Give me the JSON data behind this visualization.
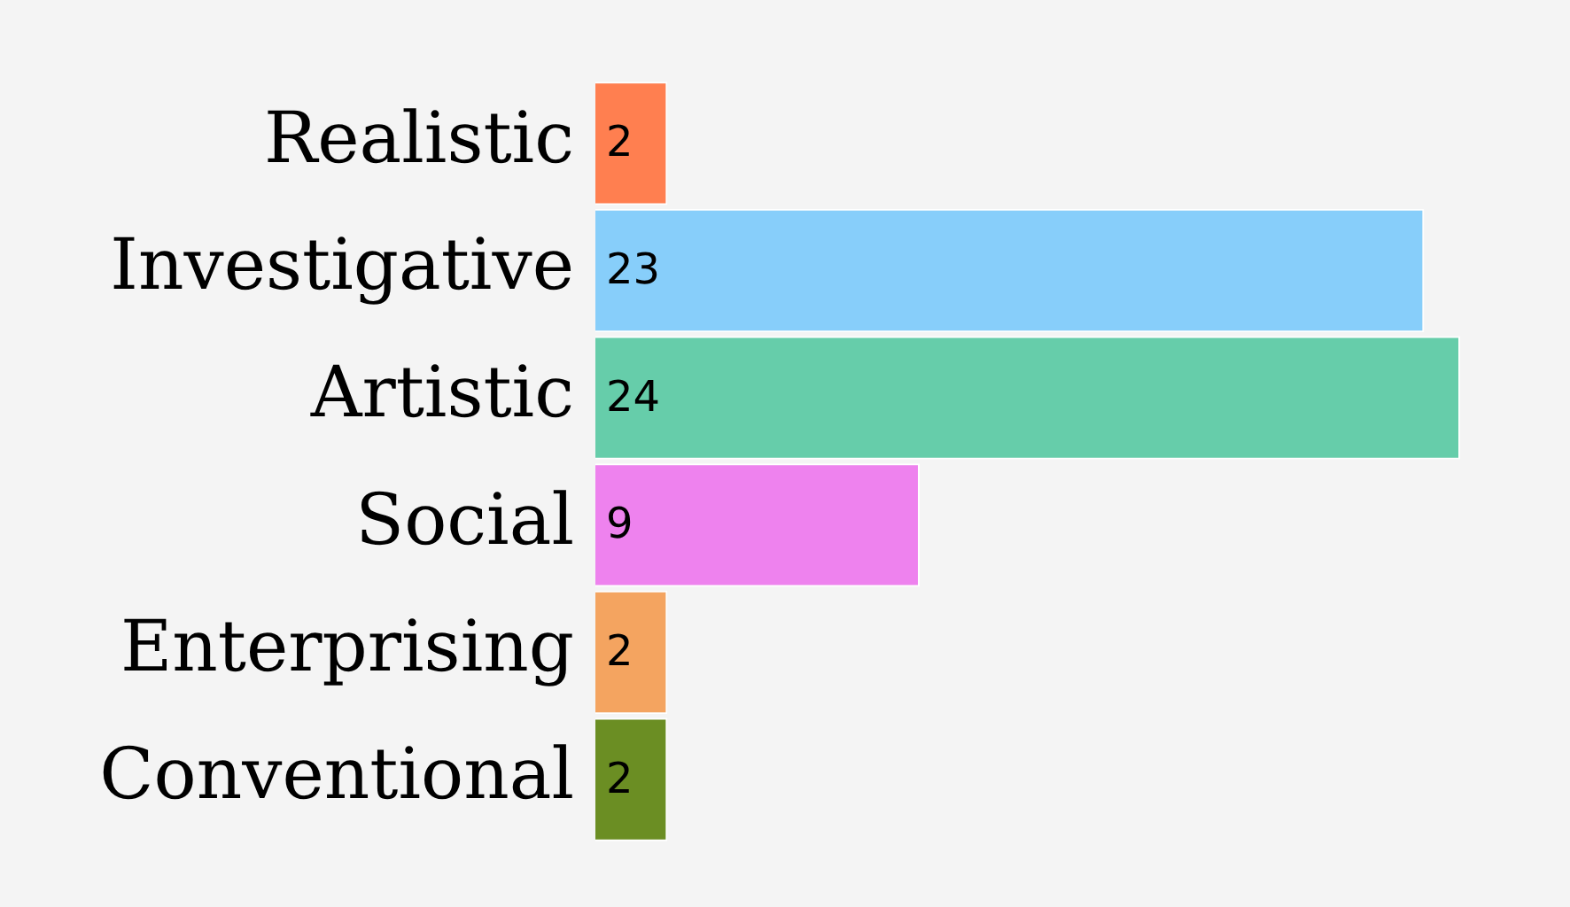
{
  "chart_data": {
    "type": "bar",
    "orientation": "horizontal",
    "categories": [
      "Realistic",
      "Investigative",
      "Artistic",
      "Social",
      "Enterprising",
      "Conventional"
    ],
    "values": [
      2,
      23,
      24,
      9,
      2,
      2
    ],
    "colors": [
      "#ff7f50",
      "#87cefa",
      "#66cdaa",
      "#ee82ee",
      "#f4a460",
      "#6b8e23"
    ],
    "data_labels": true
  }
}
